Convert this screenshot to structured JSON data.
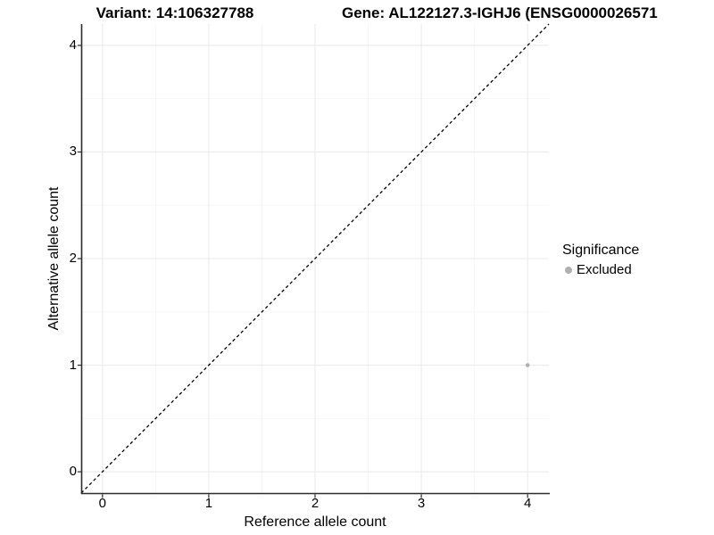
{
  "chart_data": {
    "type": "scatter",
    "titles": {
      "left": "Variant: 14:106327788",
      "right": "Gene: AL122127.3-IGHJ6 (ENSG0000026571"
    },
    "xlabel": "Reference allele count",
    "ylabel": "Alternative allele count",
    "xlim": [
      -0.2,
      4.2
    ],
    "ylim": [
      -0.2,
      4.2
    ],
    "x_ticks": [
      0,
      1,
      2,
      3,
      4
    ],
    "y_ticks": [
      0,
      1,
      2,
      3,
      4
    ],
    "x_minor": [
      0.5,
      1.5,
      2.5,
      3.5
    ],
    "y_minor": [
      0.5,
      1.5,
      2.5,
      3.5
    ],
    "grid": "major+minor",
    "points": [
      {
        "x": 4,
        "y": 1,
        "series": "Excluded"
      }
    ],
    "reference_line": {
      "type": "identity",
      "style": "dashed",
      "x1": -0.2,
      "y1": -0.2,
      "x2": 4.2,
      "y2": 4.2
    },
    "legend": {
      "title": "Significance",
      "position": "right",
      "entries": [
        {
          "label": "Excluded",
          "color": "#b0b0b0"
        }
      ]
    }
  },
  "colors": {
    "background": "#ffffff",
    "point": "#b0b0b0",
    "grid_major": "#ebebeb",
    "grid_minor": "#f5f5f5",
    "axis_line": "#2b2b2b",
    "dashed_line": "#000000",
    "text": "#000000"
  }
}
